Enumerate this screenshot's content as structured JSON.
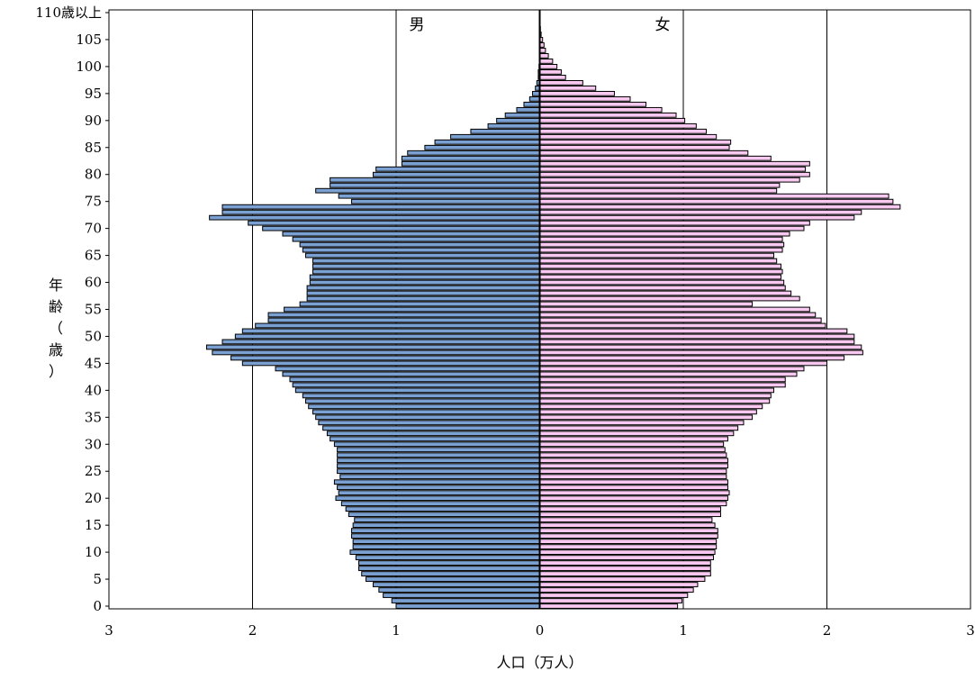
{
  "chart_data": {
    "type": "bar",
    "orientation": "horizontal-pyramid",
    "xlabel": "人口（万人）",
    "ylabel": "年齢（歳）",
    "xlim": [
      -3,
      3
    ],
    "x_ticks": [
      3,
      2,
      1,
      0,
      1,
      2,
      3
    ],
    "ylim": [
      0,
      110
    ],
    "y_ticks": [
      "0",
      "5",
      "10",
      "15",
      "20",
      "25",
      "30",
      "35",
      "40",
      "45",
      "50",
      "55",
      "60",
      "65",
      "70",
      "75",
      "80",
      "85",
      "90",
      "95",
      "100",
      "105",
      "110歳以上"
    ],
    "grid": "vertical lines at 1 and 2 on each side",
    "categories": [
      "0",
      "1",
      "2",
      "3",
      "4",
      "5",
      "6",
      "7",
      "8",
      "9",
      "10",
      "11",
      "12",
      "13",
      "14",
      "15",
      "16",
      "17",
      "18",
      "19",
      "20",
      "21",
      "22",
      "23",
      "24",
      "25",
      "26",
      "27",
      "28",
      "29",
      "30",
      "31",
      "32",
      "33",
      "34",
      "35",
      "36",
      "37",
      "38",
      "39",
      "40",
      "41",
      "42",
      "43",
      "44",
      "45",
      "46",
      "47",
      "48",
      "49",
      "50",
      "51",
      "52",
      "53",
      "54",
      "55",
      "56",
      "57",
      "58",
      "59",
      "60",
      "61",
      "62",
      "63",
      "64",
      "65",
      "66",
      "67",
      "68",
      "69",
      "70",
      "71",
      "72",
      "73",
      "74",
      "75",
      "76",
      "77",
      "78",
      "79",
      "80",
      "81",
      "82",
      "83",
      "84",
      "85",
      "86",
      "87",
      "88",
      "89",
      "90",
      "91",
      "92",
      "93",
      "94",
      "95",
      "96",
      "97",
      "98",
      "99",
      "100",
      "101",
      "102",
      "103",
      "104",
      "105",
      "106",
      "107",
      "108",
      "109",
      "110歳以上"
    ],
    "series": [
      {
        "name": "男",
        "color": "#7BA0D2",
        "values": [
          1.0,
          1.03,
          1.09,
          1.12,
          1.16,
          1.21,
          1.24,
          1.26,
          1.26,
          1.28,
          1.32,
          1.3,
          1.3,
          1.31,
          1.31,
          1.3,
          1.29,
          1.33,
          1.35,
          1.38,
          1.42,
          1.4,
          1.41,
          1.43,
          1.39,
          1.41,
          1.41,
          1.41,
          1.41,
          1.41,
          1.43,
          1.46,
          1.48,
          1.51,
          1.54,
          1.56,
          1.58,
          1.61,
          1.63,
          1.65,
          1.7,
          1.72,
          1.74,
          1.79,
          1.84,
          2.07,
          2.15,
          2.28,
          2.32,
          2.21,
          2.12,
          2.07,
          1.98,
          1.89,
          1.89,
          1.78,
          1.67,
          1.62,
          1.62,
          1.62,
          1.6,
          1.6,
          1.58,
          1.58,
          1.58,
          1.63,
          1.65,
          1.67,
          1.72,
          1.79,
          1.93,
          2.03,
          2.3,
          2.21,
          2.21,
          1.31,
          1.4,
          1.56,
          1.46,
          1.46,
          1.16,
          1.14,
          0.96,
          0.96,
          0.92,
          0.8,
          0.73,
          0.62,
          0.48,
          0.36,
          0.3,
          0.24,
          0.16,
          0.11,
          0.07,
          0.05,
          0.03,
          0.02,
          0.01,
          0.01,
          0.005,
          0.003,
          0.002,
          0.001,
          0.001,
          0.001,
          0.0,
          0.0,
          0.0,
          0.0,
          0.0
        ]
      },
      {
        "name": "女",
        "color": "#F8C8F0",
        "values": [
          0.96,
          0.99,
          1.03,
          1.07,
          1.1,
          1.15,
          1.19,
          1.19,
          1.19,
          1.21,
          1.22,
          1.23,
          1.23,
          1.24,
          1.24,
          1.22,
          1.2,
          1.26,
          1.26,
          1.3,
          1.31,
          1.32,
          1.31,
          1.31,
          1.3,
          1.3,
          1.31,
          1.31,
          1.3,
          1.29,
          1.28,
          1.31,
          1.35,
          1.38,
          1.42,
          1.48,
          1.51,
          1.55,
          1.6,
          1.61,
          1.63,
          1.71,
          1.71,
          1.79,
          1.84,
          2.0,
          2.12,
          2.25,
          2.24,
          2.19,
          2.19,
          2.14,
          1.99,
          1.96,
          1.92,
          1.88,
          1.48,
          1.81,
          1.75,
          1.71,
          1.7,
          1.68,
          1.69,
          1.68,
          1.65,
          1.63,
          1.69,
          1.7,
          1.69,
          1.74,
          1.84,
          1.88,
          2.19,
          2.24,
          2.51,
          2.46,
          2.43,
          1.65,
          1.67,
          1.81,
          1.88,
          1.85,
          1.88,
          1.61,
          1.45,
          1.32,
          1.33,
          1.23,
          1.16,
          1.09,
          1.01,
          0.95,
          0.85,
          0.74,
          0.63,
          0.52,
          0.39,
          0.3,
          0.18,
          0.15,
          0.12,
          0.09,
          0.06,
          0.04,
          0.03,
          0.02,
          0.01,
          0.005,
          0.003,
          0.002,
          0.001
        ]
      }
    ]
  }
}
